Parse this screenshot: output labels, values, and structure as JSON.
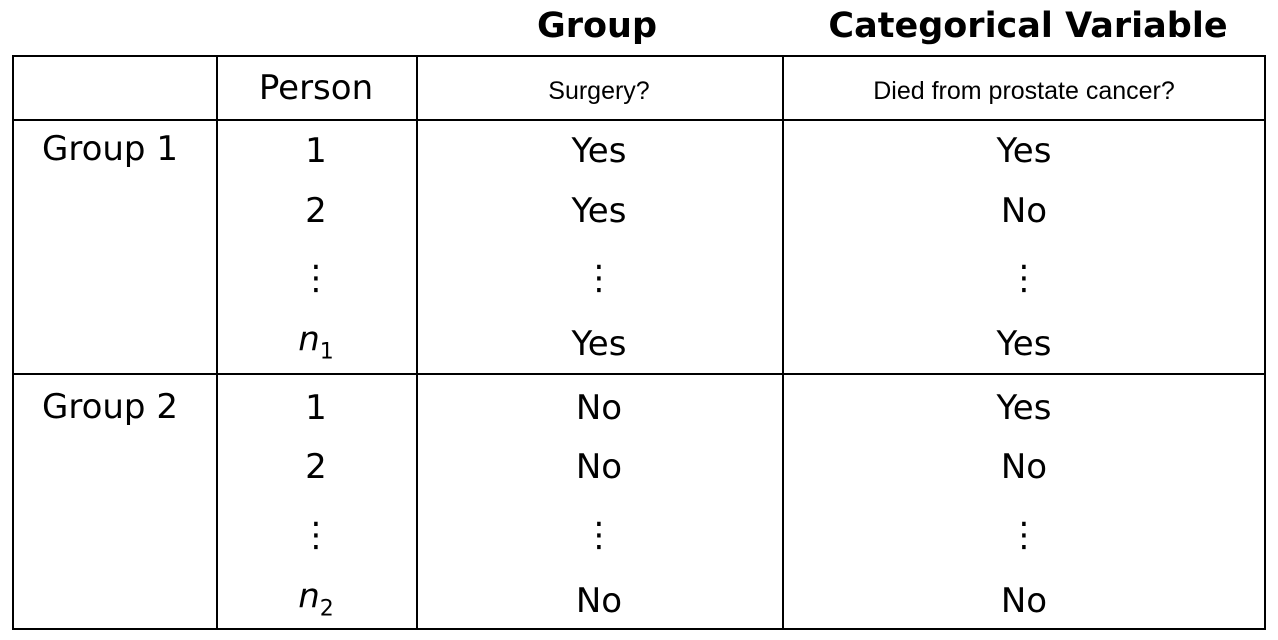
{
  "headings": {
    "group": "Group",
    "categorical_variable": "Categorical Variable"
  },
  "table": {
    "header": {
      "person": "Person",
      "surgery": "Surgery?",
      "died": "Died from prostate cancer?"
    },
    "groups": [
      {
        "label": "Group 1",
        "rows": [
          {
            "person": "1",
            "surgery": "Yes",
            "died": "Yes"
          },
          {
            "person": "2",
            "surgery": "Yes",
            "died": "No"
          },
          {
            "person": "⋮",
            "surgery": "⋮",
            "died": "⋮"
          },
          {
            "person_base": "n",
            "person_sub": "1",
            "surgery": "Yes",
            "died": "Yes"
          }
        ]
      },
      {
        "label": "Group 2",
        "rows": [
          {
            "person": "1",
            "surgery": "No",
            "died": "Yes"
          },
          {
            "person": "2",
            "surgery": "No",
            "died": "No"
          },
          {
            "person": "⋮",
            "surgery": "⋮",
            "died": "⋮"
          },
          {
            "person_base": "n",
            "person_sub": "2",
            "surgery": "No",
            "died": "No"
          }
        ]
      }
    ]
  }
}
